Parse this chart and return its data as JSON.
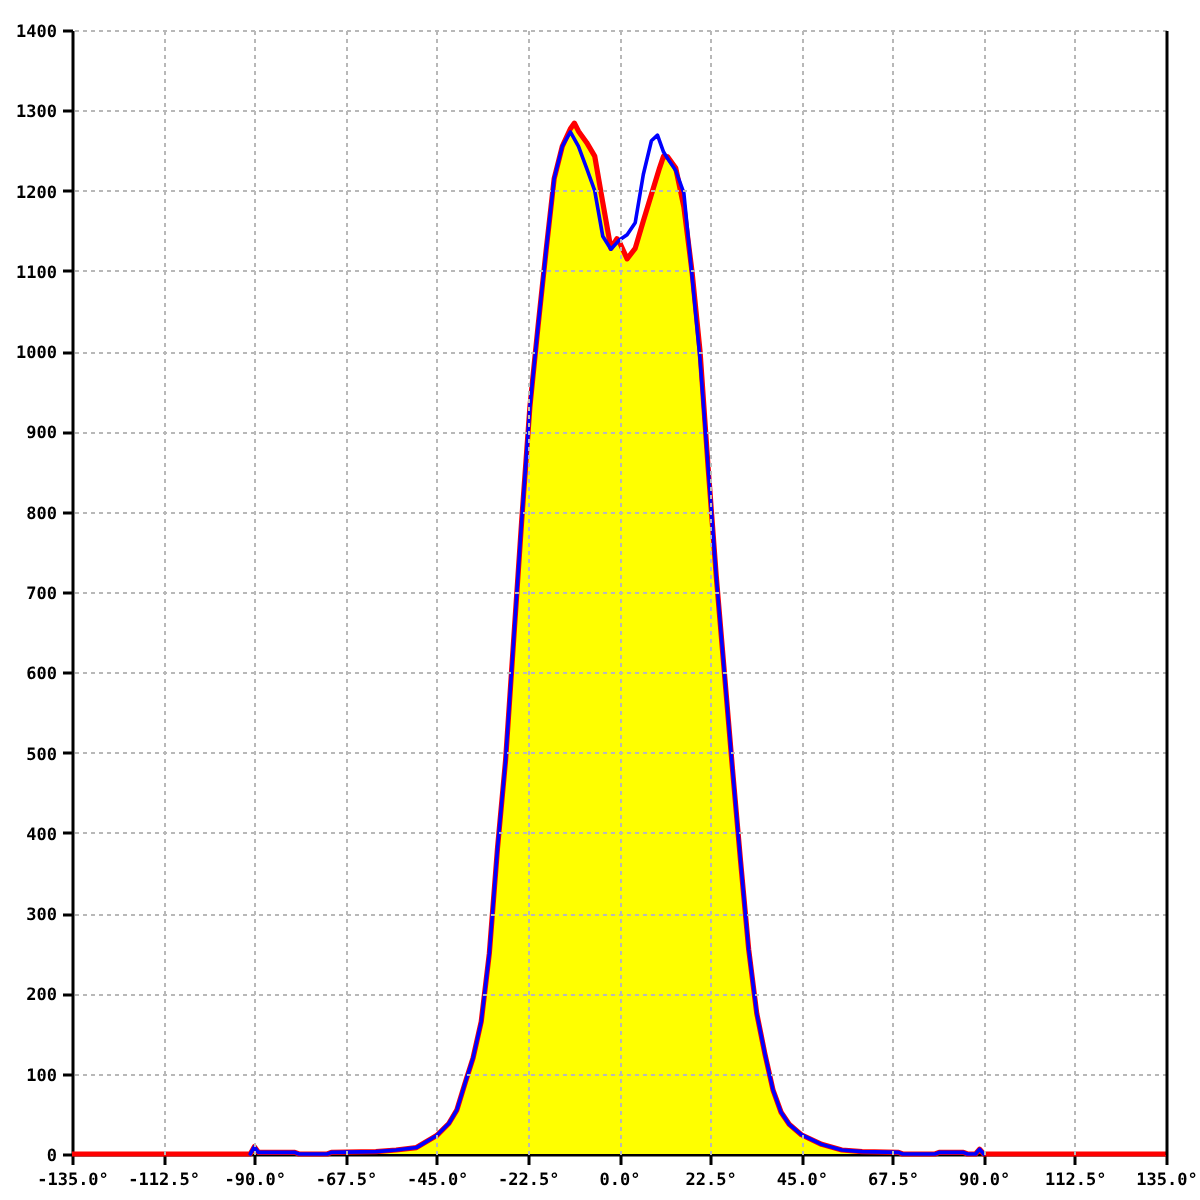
{
  "chart_data": {
    "type": "line",
    "xlim": [
      -135,
      135
    ],
    "xticks": [
      {
        "value": -135,
        "label": "-135.0°"
      },
      {
        "value": -112.5,
        "label": "-112.5°"
      },
      {
        "value": -90,
        "label": "-90.0°"
      },
      {
        "value": -67.5,
        "label": "-67.5°"
      },
      {
        "value": -45,
        "label": "-45.0°"
      },
      {
        "value": -22.5,
        "label": "-22.5°"
      },
      {
        "value": 0,
        "label": "0.0°"
      },
      {
        "value": 22.5,
        "label": "22.5°"
      },
      {
        "value": 45,
        "label": "45.0°"
      },
      {
        "value": 67.5,
        "label": "67.5°"
      },
      {
        "value": 90,
        "label": "90.0°"
      },
      {
        "value": 112.5,
        "label": "112.5°"
      },
      {
        "value": 135,
        "label": "135.0°"
      }
    ],
    "ylim": [
      0,
      1400
    ],
    "yticks": [
      0,
      100,
      200,
      300,
      400,
      500,
      600,
      700,
      800,
      900,
      1000,
      1100,
      1200,
      1300,
      1400
    ],
    "grid": true,
    "series": [
      {
        "type": "area",
        "color": "#ffff00",
        "x": [
          -135,
          -91,
          -90,
          -89,
          -80,
          -79,
          -72,
          -71,
          -60,
          -55,
          -50,
          -45,
          -42,
          -40,
          -38,
          -36,
          -34,
          -32,
          -30,
          -28,
          -26,
          -24,
          -22,
          -20,
          -18,
          -16,
          -14,
          -12,
          -11,
          -10,
          -8,
          -6,
          -4,
          -2,
          -0.5,
          0,
          2,
          4,
          6,
          8,
          10,
          11,
          12,
          14,
          16,
          18,
          20,
          22,
          24,
          26,
          28,
          30,
          32,
          34,
          36,
          38,
          40,
          42,
          45,
          50,
          55,
          60,
          69,
          70,
          78,
          79,
          85,
          86,
          88,
          89,
          90,
          135
        ],
        "values": [
          0,
          0,
          9,
          2,
          2,
          0,
          0,
          2,
          3,
          5,
          8,
          23,
          38,
          55,
          88,
          120,
          165,
          250,
          380,
          490,
          640,
          790,
          930,
          1030,
          1125,
          1215,
          1255,
          1277,
          1284,
          1274,
          1260,
          1243,
          1185,
          1128,
          1140,
          1137,
          1115,
          1128,
          1162,
          1195,
          1228,
          1243,
          1242,
          1228,
          1180,
          1100,
          1000,
          855,
          720,
          600,
          480,
          365,
          255,
          175,
          125,
          80,
          52,
          37,
          24,
          12,
          5,
          3,
          2,
          0,
          0,
          2,
          2,
          0,
          0,
          6,
          0,
          0
        ]
      },
      {
        "color": "#0000ff",
        "x": [
          -91,
          -90,
          -89,
          -80,
          -79,
          -72,
          -71,
          -60,
          -55,
          -50,
          -45,
          -42,
          -40,
          -38,
          -36,
          -34,
          -32,
          -30,
          -28,
          -26,
          -24,
          -22,
          -20,
          -18,
          -16,
          -14,
          -12,
          -10,
          -8,
          -6,
          -4,
          -2,
          0,
          2,
          4,
          6,
          8,
          9.5,
          11,
          12,
          14,
          16,
          18,
          20,
          22,
          24,
          26,
          28,
          30,
          32,
          34,
          36,
          38,
          40,
          42,
          45,
          50,
          55,
          60,
          69,
          70,
          78,
          79,
          85,
          86,
          88,
          89,
          90
        ],
        "values": [
          0,
          9,
          2,
          2,
          0,
          0,
          2,
          3,
          5,
          8,
          23,
          38,
          55,
          88,
          120,
          165,
          250,
          380,
          490,
          640,
          790,
          930,
          1030,
          1125,
          1215,
          1255,
          1273,
          1255,
          1228,
          1200,
          1143,
          1127,
          1138,
          1145,
          1160,
          1220,
          1262,
          1269,
          1248,
          1240,
          1225,
          1197,
          1095,
          990,
          855,
          720,
          600,
          480,
          365,
          255,
          175,
          125,
          80,
          52,
          37,
          24,
          12,
          5,
          3,
          2,
          0,
          0,
          2,
          2,
          0,
          0,
          6,
          0
        ]
      }
    ]
  }
}
